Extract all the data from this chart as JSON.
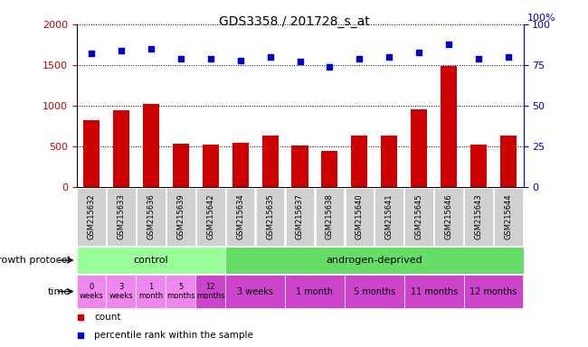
{
  "title": "GDS3358 / 201728_s_at",
  "samples": [
    "GSM215632",
    "GSM215633",
    "GSM215636",
    "GSM215639",
    "GSM215642",
    "GSM215634",
    "GSM215635",
    "GSM215637",
    "GSM215638",
    "GSM215640",
    "GSM215641",
    "GSM215645",
    "GSM215646",
    "GSM215643",
    "GSM215644"
  ],
  "counts": [
    820,
    950,
    1020,
    540,
    530,
    550,
    640,
    510,
    450,
    640,
    640,
    960,
    1490,
    520,
    640
  ],
  "percentiles": [
    82,
    84,
    85,
    79,
    79,
    78,
    80,
    77,
    74,
    79,
    80,
    83,
    88,
    79,
    80
  ],
  "ylim_left": [
    0,
    2000
  ],
  "ylim_right": [
    0,
    100
  ],
  "yticks_left": [
    0,
    500,
    1000,
    1500,
    2000
  ],
  "yticks_right": [
    0,
    25,
    50,
    75,
    100
  ],
  "bar_color": "#cc0000",
  "dot_color": "#0000cc",
  "background_color": "#ffffff",
  "xtick_bg_color": "#d0d0d0",
  "protocol_control_color": "#99ff99",
  "protocol_androgen_color": "#66dd66",
  "time_light_color": "#ee88ee",
  "time_dark_color": "#cc44cc",
  "protocol_row_label": "growth protocol",
  "time_row_label": "time",
  "protocol_groups": [
    {
      "label": "control",
      "start": 0,
      "end": 5
    },
    {
      "label": "androgen-deprived",
      "start": 5,
      "end": 15
    }
  ],
  "time_cells": [
    {
      "label": "0\nweeks",
      "start": 0,
      "end": 1,
      "dark": false
    },
    {
      "label": "3\nweeks",
      "start": 1,
      "end": 2,
      "dark": false
    },
    {
      "label": "1\nmonth",
      "start": 2,
      "end": 3,
      "dark": false
    },
    {
      "label": "5\nmonths",
      "start": 3,
      "end": 4,
      "dark": false
    },
    {
      "label": "12\nmonths",
      "start": 4,
      "end": 5,
      "dark": true
    },
    {
      "label": "3 weeks",
      "start": 5,
      "end": 7,
      "dark": true
    },
    {
      "label": "1 month",
      "start": 7,
      "end": 9,
      "dark": true
    },
    {
      "label": "5 months",
      "start": 9,
      "end": 11,
      "dark": true
    },
    {
      "label": "11 months",
      "start": 11,
      "end": 13,
      "dark": true
    },
    {
      "label": "12 months",
      "start": 13,
      "end": 15,
      "dark": true
    }
  ],
  "legend_items": [
    {
      "label": "count",
      "color": "#cc0000"
    },
    {
      "label": "percentile rank within the sample",
      "color": "#0000cc"
    }
  ]
}
